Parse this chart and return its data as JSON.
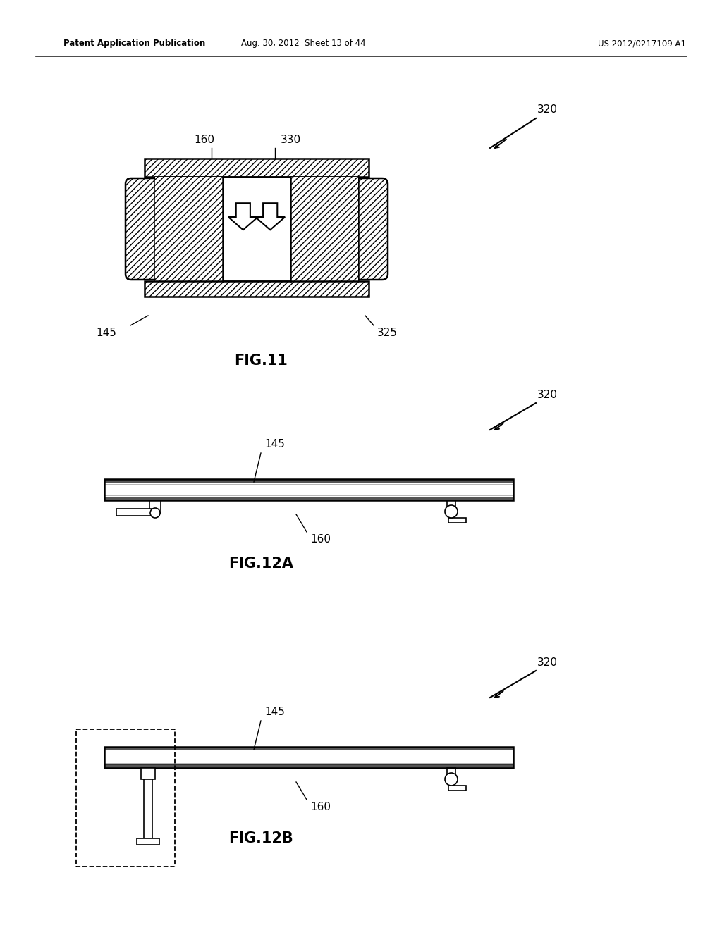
{
  "bg_color": "#ffffff",
  "line_color": "#000000",
  "header_left": "Patent Application Publication",
  "header_mid": "Aug. 30, 2012  Sheet 13 of 44",
  "header_right": "US 2012/0217109 A1",
  "fig11_label": "FIG.11",
  "fig12a_label": "FIG.12A",
  "fig12b_label": "FIG.12B"
}
